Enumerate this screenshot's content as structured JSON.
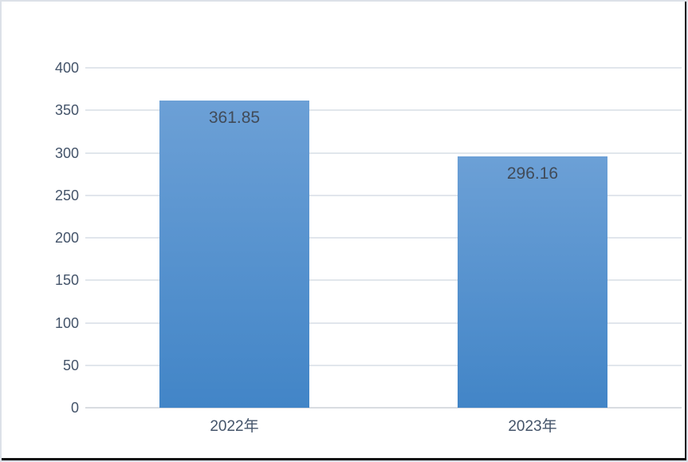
{
  "chart_data": {
    "type": "bar",
    "title": "",
    "xlabel": "",
    "ylabel": "",
    "categories": [
      "2022年",
      "2023年"
    ],
    "values": [
      361.85,
      296.16
    ],
    "data_labels": [
      "361.85",
      "296.16"
    ],
    "ylim": [
      0,
      400
    ],
    "ytick_step": 50,
    "yticks": [
      0,
      50,
      100,
      150,
      200,
      250,
      300,
      350,
      400
    ],
    "grid": true,
    "legend": "none",
    "colors": {
      "bar_gradient_top": "#6ca0d6",
      "bar_gradient_bottom": "#4285c7",
      "gridline": "#e1e6ec",
      "axis_line": "#d9dce1",
      "tick_label": "#44546a",
      "category_label": "#44546a",
      "data_label": "#414b58",
      "background": "#ffffff",
      "chart_border": "#dce1e8",
      "screenshot_edge": "#111111"
    }
  }
}
